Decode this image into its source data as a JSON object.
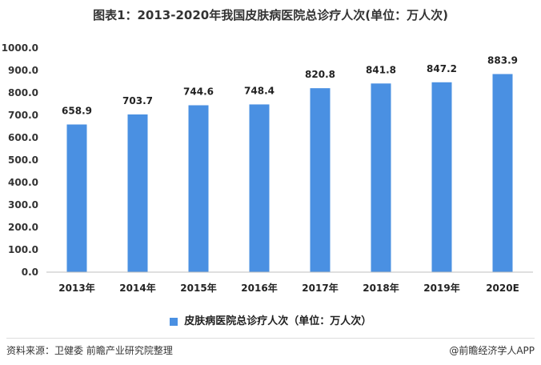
{
  "chart_data": {
    "type": "bar",
    "title": "图表1：2013-2020年我国皮肤病医院总诊疗人次(单位：万人次)",
    "categories": [
      "2013年",
      "2014年",
      "2015年",
      "2016年",
      "2017年",
      "2018年",
      "2019年",
      "2020E"
    ],
    "series": [
      {
        "name": "皮肤病医院总诊疗人次（单位：万人次）",
        "values": [
          658.9,
          703.7,
          744.6,
          748.4,
          820.8,
          841.8,
          847.2,
          883.9
        ],
        "labels": [
          "658.9",
          "703.7",
          "744.6",
          "748.4",
          "820.8",
          "841.8",
          "847.2",
          "883.9"
        ]
      }
    ],
    "ylim": [
      0,
      1000
    ],
    "yticks": [
      "0.0",
      "100.0",
      "200.0",
      "300.0",
      "400.0",
      "500.0",
      "600.0",
      "700.0",
      "800.0",
      "900.0",
      "1000.0"
    ],
    "grid": false,
    "legend_position": "bottom",
    "colors": {
      "bar": "#4a90e2",
      "axis": "#bfbfbf"
    }
  },
  "footer": {
    "source": "资料来源：卫健委 前瞻产业研究院整理",
    "brand": "@前瞻经济学人APP"
  }
}
